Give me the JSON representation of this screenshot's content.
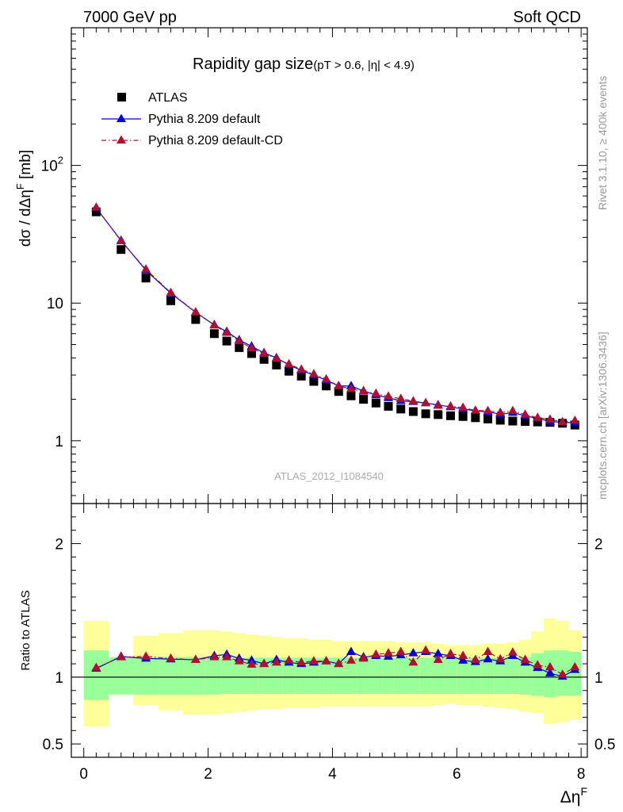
{
  "header": {
    "left": "7000 GeV pp",
    "right": "Soft QCD"
  },
  "side_labels": {
    "rivet": "Rivet 3.1.10, ≥ 400k events",
    "mcplots": "mcplots.cern.ch [arXiv:1306.3436]"
  },
  "chart_data": {
    "type": "scatter",
    "title": "Rapidity gap size",
    "subtitle": "(pT > 0.6, |η| < 4.9)",
    "analysis_id": "ATLAS_2012_I1084540",
    "xlabel": "ΔηF",
    "ylabel_top": "dσ / dΔηF [mb]",
    "ylabel_bottom": "Ratio to ATLAS",
    "xlim": [
      -0.2,
      8.1
    ],
    "ylim_top": [
      0.35,
      1000
    ],
    "ylim_bottom": [
      0.4,
      2.3
    ],
    "yscale_top": "log",
    "x_ticks": [
      "0",
      "2",
      "4",
      "6",
      "8"
    ],
    "y_ticks_top": [
      "1",
      "10",
      "10^2"
    ],
    "y_ticks_bottom": [
      "0.5",
      "1",
      "2"
    ],
    "legend_position": "top-left",
    "x": [
      0.2,
      0.6,
      1.0,
      1.4,
      1.8,
      2.1,
      2.3,
      2.5,
      2.7,
      2.9,
      3.1,
      3.3,
      3.5,
      3.7,
      3.9,
      4.1,
      4.3,
      4.5,
      4.7,
      4.9,
      5.1,
      5.3,
      5.5,
      5.7,
      5.9,
      6.1,
      6.3,
      6.5,
      6.7,
      6.9,
      7.1,
      7.3,
      7.5,
      7.7,
      7.9
    ],
    "series": [
      {
        "name": "ATLAS",
        "marker": "square",
        "color": "#000000",
        "values": [
          46,
          24.5,
          15.2,
          10.4,
          7.6,
          6.0,
          5.3,
          4.75,
          4.3,
          3.9,
          3.55,
          3.2,
          2.95,
          2.7,
          2.5,
          2.28,
          2.12,
          2.0,
          1.88,
          1.78,
          1.7,
          1.63,
          1.57,
          1.55,
          1.52,
          1.5,
          1.47,
          1.44,
          1.41,
          1.39,
          1.38,
          1.37,
          1.36,
          1.34,
          1.3
        ]
      },
      {
        "name": "Pythia 8.209 default",
        "marker": "triangle",
        "line": "solid",
        "color": "#0000cc",
        "values": [
          49,
          28.5,
          17.3,
          11.8,
          8.55,
          6.95,
          6.2,
          5.4,
          4.85,
          4.35,
          4.0,
          3.55,
          3.25,
          3.0,
          2.75,
          2.5,
          2.5,
          2.3,
          2.15,
          2.05,
          1.95,
          1.92,
          1.88,
          1.82,
          1.76,
          1.7,
          1.65,
          1.62,
          1.56,
          1.6,
          1.52,
          1.45,
          1.38,
          1.36,
          1.35
        ]
      },
      {
        "name": "Pythia 8.209 default-CD",
        "marker": "triangle",
        "line": "dash-dot",
        "color": "#aa1133",
        "values": [
          49.5,
          28.2,
          17.6,
          11.9,
          8.6,
          6.9,
          6.1,
          5.3,
          4.7,
          4.3,
          3.95,
          3.6,
          3.3,
          3.05,
          2.8,
          2.5,
          2.38,
          2.28,
          2.2,
          2.1,
          2.02,
          1.94,
          1.88,
          1.8,
          1.78,
          1.74,
          1.66,
          1.65,
          1.6,
          1.65,
          1.55,
          1.47,
          1.43,
          1.37,
          1.4
        ]
      }
    ],
    "ratio_default": [
      1.065,
      1.155,
      1.14,
      1.135,
      1.13,
      1.16,
      1.17,
      1.14,
      1.125,
      1.1,
      1.13,
      1.11,
      1.1,
      1.11,
      1.12,
      1.1,
      1.19,
      1.15,
      1.16,
      1.155,
      1.165,
      1.18,
      1.19,
      1.175,
      1.16,
      1.125,
      1.115,
      1.135,
      1.12,
      1.16,
      1.11,
      1.07,
      1.03,
      1.005,
      1.055
    ],
    "ratio_cd": [
      1.07,
      1.15,
      1.155,
      1.14,
      1.13,
      1.15,
      1.15,
      1.12,
      1.095,
      1.1,
      1.11,
      1.125,
      1.11,
      1.12,
      1.12,
      1.1,
      1.125,
      1.14,
      1.17,
      1.18,
      1.19,
      1.11,
      1.2,
      1.13,
      1.175,
      1.16,
      1.13,
      1.19,
      1.135,
      1.185,
      1.13,
      1.09,
      1.075,
      1.02,
      1.075
    ],
    "band_green_lo": [
      0.83,
      0.87,
      0.87,
      0.87,
      0.87,
      0.87,
      0.875,
      0.875,
      0.875,
      0.875,
      0.875,
      0.875,
      0.875,
      0.875,
      0.875,
      0.875,
      0.875,
      0.875,
      0.875,
      0.875,
      0.875,
      0.875,
      0.875,
      0.875,
      0.875,
      0.875,
      0.875,
      0.875,
      0.875,
      0.875,
      0.87,
      0.86,
      0.85,
      0.86,
      0.86
    ],
    "band_green_hi": [
      1.2,
      1.15,
      1.15,
      1.15,
      1.15,
      1.15,
      1.145,
      1.145,
      1.145,
      1.145,
      1.145,
      1.145,
      1.145,
      1.145,
      1.145,
      1.145,
      1.145,
      1.145,
      1.145,
      1.145,
      1.145,
      1.145,
      1.145,
      1.145,
      1.145,
      1.145,
      1.145,
      1.145,
      1.145,
      1.145,
      1.15,
      1.18,
      1.2,
      1.2,
      1.19
    ],
    "band_yellow_lo": [
      0.63,
      0.88,
      0.79,
      0.75,
      0.72,
      0.72,
      0.73,
      0.74,
      0.75,
      0.76,
      0.76,
      0.77,
      0.77,
      0.77,
      0.78,
      0.78,
      0.78,
      0.78,
      0.78,
      0.78,
      0.78,
      0.78,
      0.78,
      0.79,
      0.8,
      0.79,
      0.79,
      0.78,
      0.77,
      0.76,
      0.74,
      0.73,
      0.65,
      0.66,
      0.68
    ],
    "band_yellow_hi": [
      1.42,
      1.12,
      1.31,
      1.33,
      1.35,
      1.35,
      1.34,
      1.33,
      1.32,
      1.31,
      1.3,
      1.29,
      1.29,
      1.28,
      1.28,
      1.27,
      1.27,
      1.27,
      1.27,
      1.27,
      1.26,
      1.26,
      1.26,
      1.25,
      1.24,
      1.24,
      1.24,
      1.25,
      1.25,
      1.26,
      1.28,
      1.34,
      1.44,
      1.42,
      1.35
    ]
  }
}
